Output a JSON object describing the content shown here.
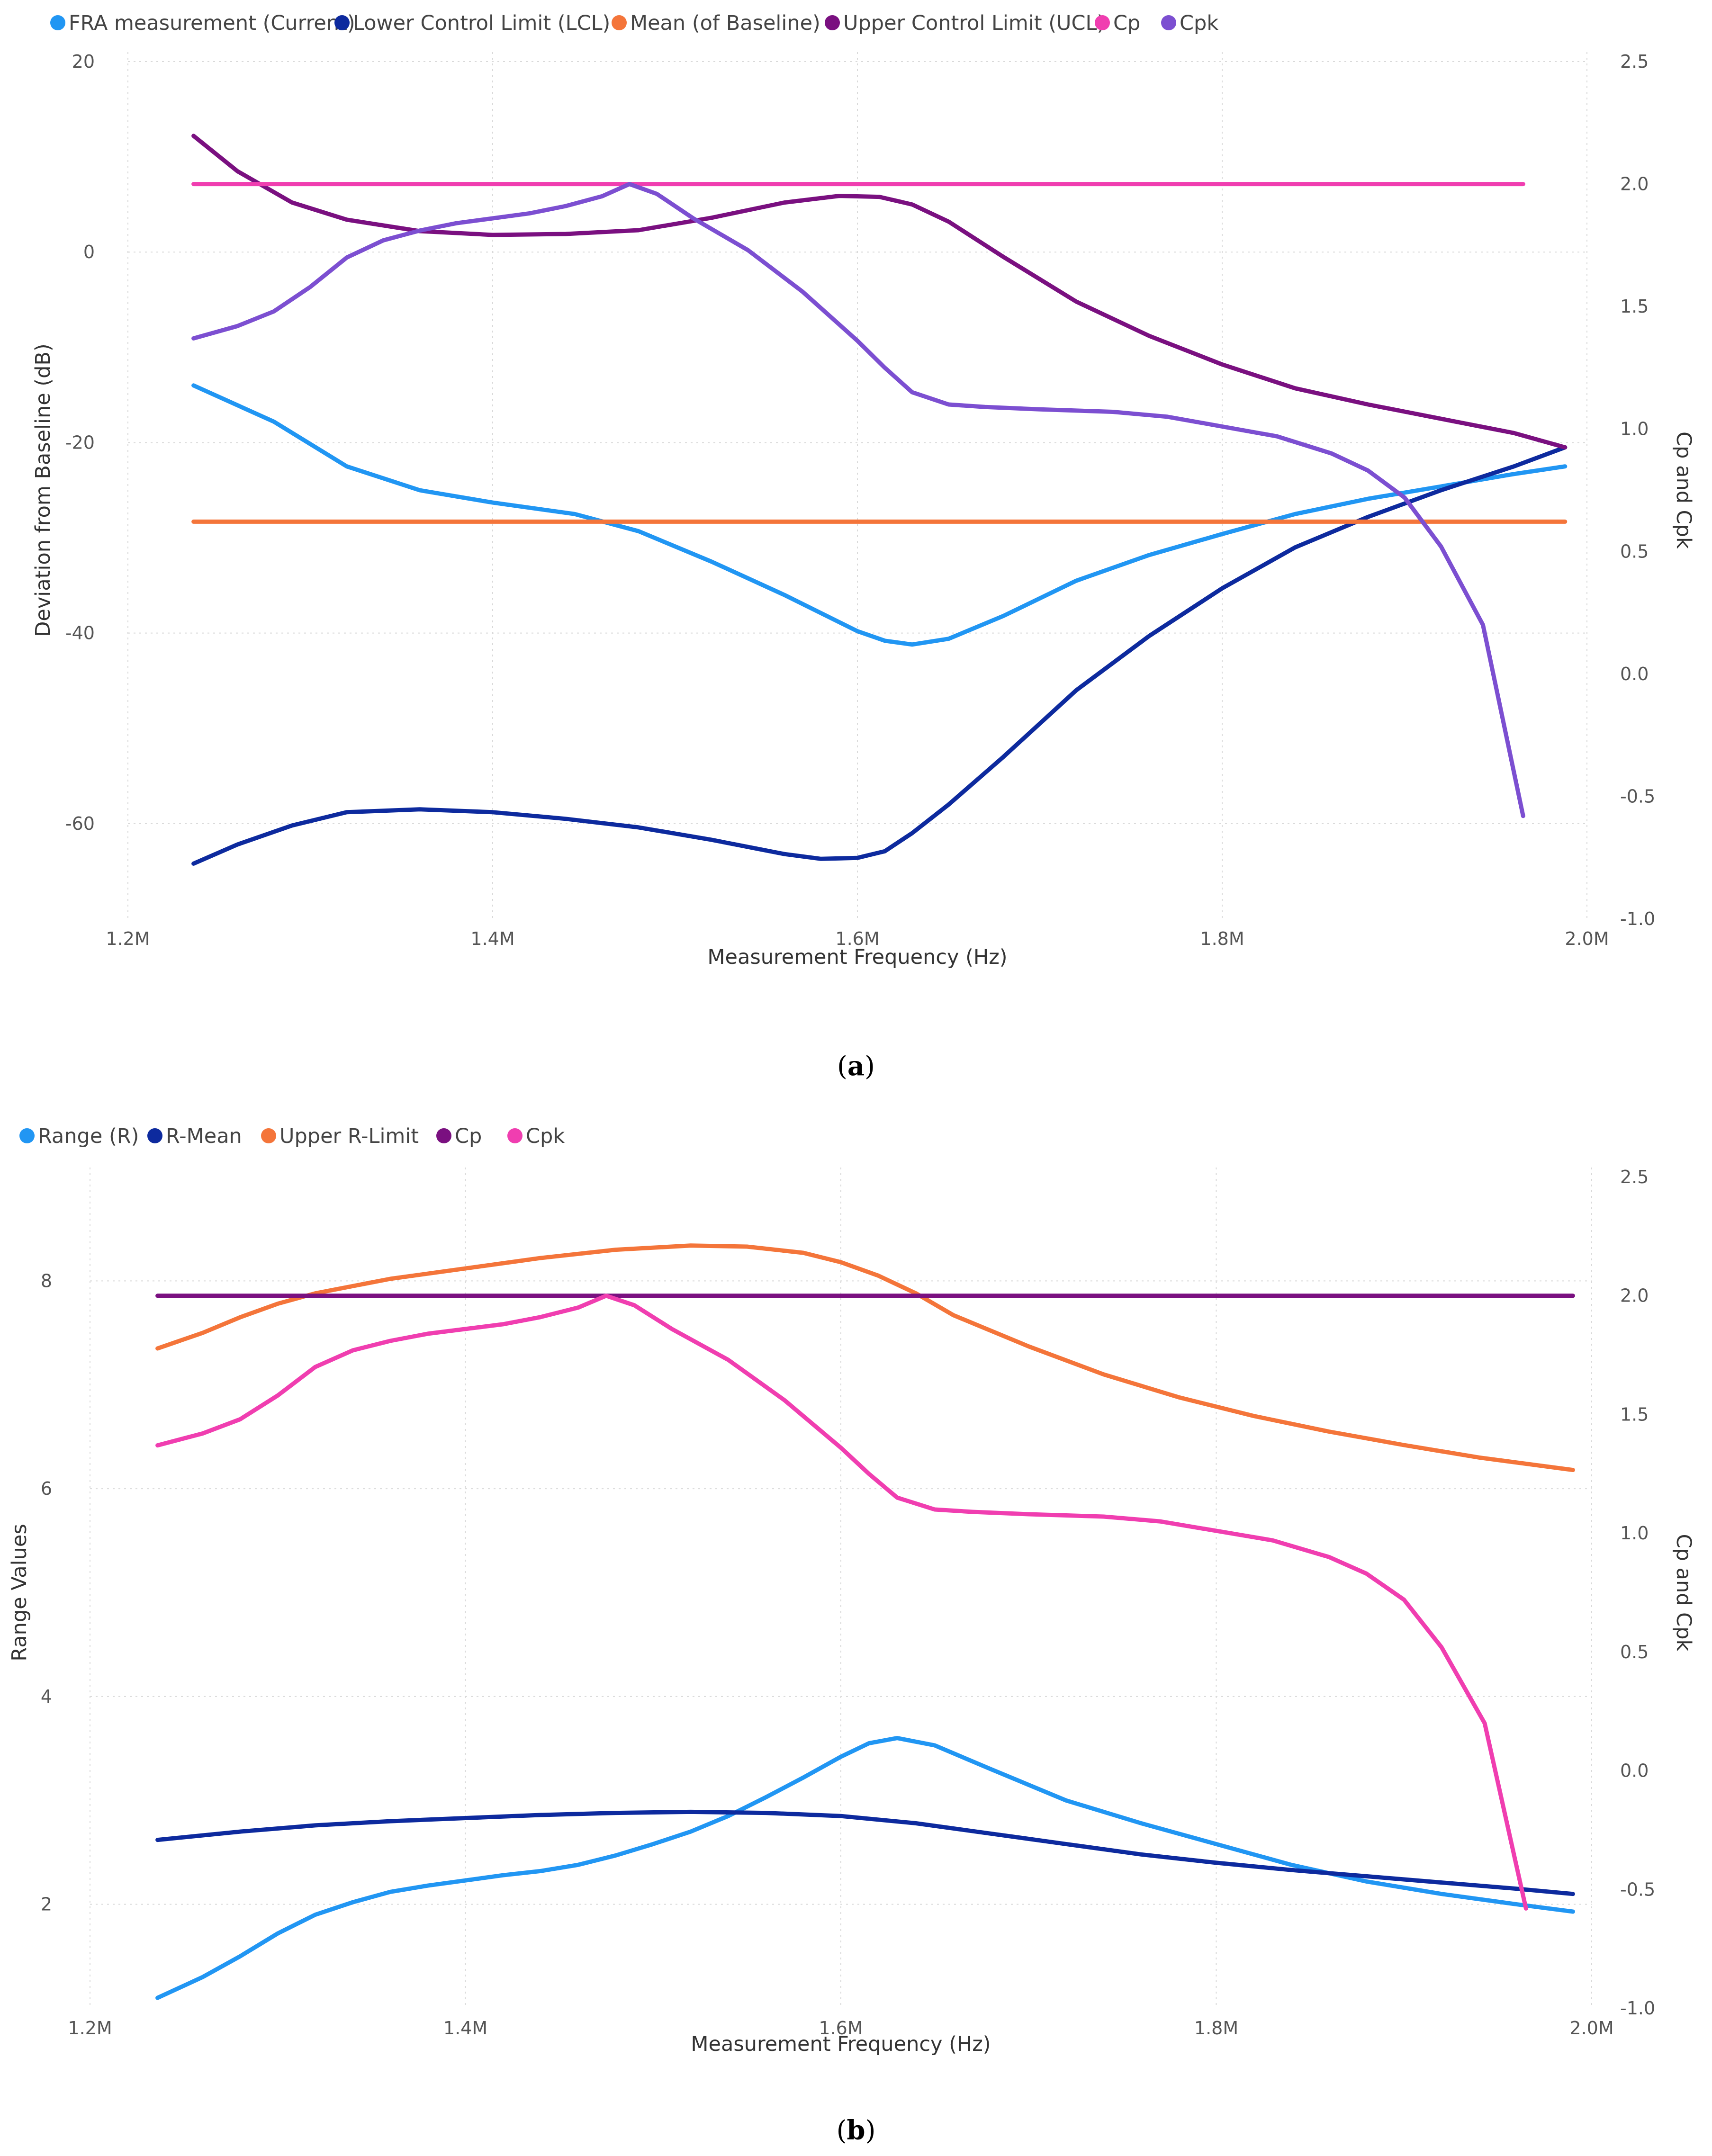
{
  "figure_captions": [
    "(a)",
    "(b)"
  ],
  "chart_data": [
    {
      "type": "line",
      "caption": "(a)",
      "legend_position": "top-left",
      "xlabel": "Measurement Frequency (Hz)",
      "ylabel": "Deviation from Baseline (dB)",
      "y2label": "Cp and Cpk",
      "xlim": [
        1200000,
        2000000
      ],
      "ylim": [
        -70,
        20
      ],
      "y2lim": [
        -1.0,
        2.5
      ],
      "x_ticks": [
        1200000,
        1400000,
        1600000,
        1800000,
        2000000
      ],
      "x_tick_labels": [
        "1.2M",
        "1.4M",
        "1.6M",
        "1.8M",
        "2.0M"
      ],
      "y_ticks": [
        20,
        0,
        -20,
        -40,
        -60
      ],
      "y_tick_labels": [
        "20",
        "0",
        "-20",
        "-40",
        "-60"
      ],
      "y2_ticks": [
        2.5,
        2.0,
        1.5,
        1.0,
        0.5,
        0.0,
        -0.5,
        -1.0
      ],
      "y2_tick_labels": [
        "2.5",
        "2.0",
        "1.5",
        "1.0",
        "0.5",
        "0.0",
        "-0.5",
        "-1.0"
      ],
      "grid": true,
      "series": [
        {
          "name": "FRA measurement (Current)",
          "color": "#2196F3",
          "axis": "left",
          "points": [
            [
              1236000,
              -14
            ],
            [
              1280000,
              -17.8
            ],
            [
              1320000,
              -22.5
            ],
            [
              1360000,
              -25
            ],
            [
              1400000,
              -26.3
            ],
            [
              1445000,
              -27.5
            ],
            [
              1480000,
              -29.3
            ],
            [
              1520000,
              -32.5
            ],
            [
              1560000,
              -36
            ],
            [
              1600000,
              -39.8
            ],
            [
              1615000,
              -40.8
            ],
            [
              1630000,
              -41.2
            ],
            [
              1650000,
              -40.6
            ],
            [
              1680000,
              -38.2
            ],
            [
              1720000,
              -34.5
            ],
            [
              1760000,
              -31.8
            ],
            [
              1800000,
              -29.6
            ],
            [
              1840000,
              -27.5
            ],
            [
              1880000,
              -25.9
            ],
            [
              1920000,
              -24.6
            ],
            [
              1960000,
              -23.3
            ],
            [
              1988000,
              -22.5
            ]
          ]
        },
        {
          "name": "Lower Control Limit (LCL)",
          "color": "#0D2A9E",
          "axis": "left",
          "points": [
            [
              1236000,
              -64.2
            ],
            [
              1260000,
              -62.2
            ],
            [
              1290000,
              -60.2
            ],
            [
              1320000,
              -58.8
            ],
            [
              1360000,
              -58.5
            ],
            [
              1400000,
              -58.8
            ],
            [
              1440000,
              -59.5
            ],
            [
              1480000,
              -60.4
            ],
            [
              1520000,
              -61.7
            ],
            [
              1560000,
              -63.2
            ],
            [
              1580000,
              -63.7
            ],
            [
              1600000,
              -63.6
            ],
            [
              1615000,
              -62.9
            ],
            [
              1630000,
              -61
            ],
            [
              1650000,
              -58
            ],
            [
              1680000,
              -53
            ],
            [
              1720000,
              -46
            ],
            [
              1760000,
              -40.3
            ],
            [
              1800000,
              -35.3
            ],
            [
              1840000,
              -31
            ],
            [
              1880000,
              -27.8
            ],
            [
              1920000,
              -25
            ],
            [
              1960000,
              -22.5
            ],
            [
              1988000,
              -20.5
            ]
          ]
        },
        {
          "name": "Mean (of Baseline)",
          "color": "#F4753A",
          "axis": "left",
          "points": [
            [
              1236000,
              -28.3
            ],
            [
              1988000,
              -28.3
            ]
          ]
        },
        {
          "name": "Upper Control Limit (UCL)",
          "color": "#7A1080",
          "axis": "left",
          "points": [
            [
              1236000,
              12.2
            ],
            [
              1260000,
              8.5
            ],
            [
              1290000,
              5.2
            ],
            [
              1320000,
              3.4
            ],
            [
              1360000,
              2.2
            ],
            [
              1400000,
              1.8
            ],
            [
              1440000,
              1.9
            ],
            [
              1480000,
              2.3
            ],
            [
              1520000,
              3.6
            ],
            [
              1560000,
              5.2
            ],
            [
              1590000,
              5.9
            ],
            [
              1612000,
              5.8
            ],
            [
              1630000,
              5
            ],
            [
              1650000,
              3.2
            ],
            [
              1680000,
              -0.5
            ],
            [
              1720000,
              -5.2
            ],
            [
              1760000,
              -8.8
            ],
            [
              1800000,
              -11.8
            ],
            [
              1840000,
              -14.3
            ],
            [
              1880000,
              -16
            ],
            [
              1920000,
              -17.5
            ],
            [
              1960000,
              -19
            ],
            [
              1988000,
              -20.5
            ]
          ]
        },
        {
          "name": "Cp",
          "color": "#F03EB0",
          "axis": "right",
          "points": [
            [
              1236000,
              2.0
            ],
            [
              1965000,
              2.0
            ]
          ]
        },
        {
          "name": "Cpk",
          "color": "#7C4FD1",
          "axis": "right",
          "points": [
            [
              1236000,
              1.37
            ],
            [
              1260000,
              1.42
            ],
            [
              1280000,
              1.48
            ],
            [
              1300000,
              1.58
            ],
            [
              1320000,
              1.7
            ],
            [
              1340000,
              1.77
            ],
            [
              1360000,
              1.81
            ],
            [
              1380000,
              1.84
            ],
            [
              1400000,
              1.86
            ],
            [
              1420000,
              1.88
            ],
            [
              1440000,
              1.91
            ],
            [
              1460000,
              1.95
            ],
            [
              1475000,
              2.0
            ],
            [
              1490000,
              1.96
            ],
            [
              1510000,
              1.86
            ],
            [
              1540000,
              1.73
            ],
            [
              1570000,
              1.56
            ],
            [
              1600000,
              1.36
            ],
            [
              1615000,
              1.25
            ],
            [
              1630000,
              1.15
            ],
            [
              1650000,
              1.1
            ],
            [
              1670000,
              1.09
            ],
            [
              1700000,
              1.08
            ],
            [
              1740000,
              1.07
            ],
            [
              1770000,
              1.05
            ],
            [
              1800000,
              1.01
            ],
            [
              1830000,
              0.97
            ],
            [
              1860000,
              0.9
            ],
            [
              1880000,
              0.83
            ],
            [
              1900000,
              0.72
            ],
            [
              1920000,
              0.52
            ],
            [
              1943000,
              0.2
            ],
            [
              1965000,
              -0.58
            ]
          ]
        }
      ]
    },
    {
      "type": "line",
      "caption": "(b)",
      "legend_position": "top-left",
      "xlabel": "Measurement Frequency (Hz)",
      "ylabel": "Range Values",
      "y2label": "Cp and Cpk",
      "xlim": [
        1200000,
        2000000
      ],
      "ylim": [
        1,
        9
      ],
      "y2lim": [
        -1.0,
        2.5
      ],
      "x_ticks": [
        1200000,
        1400000,
        1600000,
        1800000,
        2000000
      ],
      "x_tick_labels": [
        "1.2M",
        "1.4M",
        "1.6M",
        "1.8M",
        "2.0M"
      ],
      "y_ticks": [
        8,
        6,
        4,
        2
      ],
      "y_tick_labels": [
        "8",
        "6",
        "4",
        "2"
      ],
      "y2_ticks": [
        2.5,
        2.0,
        1.5,
        1.0,
        0.5,
        0.0,
        -0.5,
        -1.0
      ],
      "y2_tick_labels": [
        "2.5",
        "2.0",
        "1.5",
        "1.0",
        "0.5",
        "0.0",
        "-0.5",
        "-1.0"
      ],
      "grid": true,
      "series": [
        {
          "name": "Range (R)",
          "color": "#2196F3",
          "axis": "left",
          "points": [
            [
              1236000,
              1.1
            ],
            [
              1260000,
              1.3
            ],
            [
              1280000,
              1.5
            ],
            [
              1300000,
              1.72
            ],
            [
              1320000,
              1.9
            ],
            [
              1340000,
              2.02
            ],
            [
              1360000,
              2.12
            ],
            [
              1380000,
              2.18
            ],
            [
              1400000,
              2.23
            ],
            [
              1420000,
              2.28
            ],
            [
              1440000,
              2.32
            ],
            [
              1460000,
              2.38
            ],
            [
              1480000,
              2.47
            ],
            [
              1500000,
              2.58
            ],
            [
              1520000,
              2.7
            ],
            [
              1540000,
              2.85
            ],
            [
              1560000,
              3.03
            ],
            [
              1580000,
              3.22
            ],
            [
              1600000,
              3.42
            ],
            [
              1615000,
              3.55
            ],
            [
              1630000,
              3.6
            ],
            [
              1650000,
              3.53
            ],
            [
              1680000,
              3.3
            ],
            [
              1720000,
              3.0
            ],
            [
              1760000,
              2.78
            ],
            [
              1800000,
              2.58
            ],
            [
              1840000,
              2.38
            ],
            [
              1880000,
              2.22
            ],
            [
              1920000,
              2.1
            ],
            [
              1960000,
              2.0
            ],
            [
              1990000,
              1.93
            ]
          ]
        },
        {
          "name": "R-Mean",
          "color": "#0D2A9E",
          "axis": "left",
          "points": [
            [
              1236000,
              2.62
            ],
            [
              1280000,
              2.7
            ],
            [
              1320000,
              2.76
            ],
            [
              1360000,
              2.8
            ],
            [
              1400000,
              2.83
            ],
            [
              1440000,
              2.86
            ],
            [
              1480000,
              2.88
            ],
            [
              1520000,
              2.89
            ],
            [
              1560000,
              2.88
            ],
            [
              1600000,
              2.85
            ],
            [
              1640000,
              2.78
            ],
            [
              1680000,
              2.68
            ],
            [
              1720000,
              2.58
            ],
            [
              1760000,
              2.48
            ],
            [
              1800000,
              2.4
            ],
            [
              1840000,
              2.33
            ],
            [
              1880000,
              2.27
            ],
            [
              1920000,
              2.21
            ],
            [
              1960000,
              2.15
            ],
            [
              1990000,
              2.1
            ]
          ]
        },
        {
          "name": "Upper R-Limit",
          "color": "#F4753A",
          "axis": "left",
          "points": [
            [
              1236000,
              7.35
            ],
            [
              1260000,
              7.5
            ],
            [
              1280000,
              7.65
            ],
            [
              1300000,
              7.78
            ],
            [
              1320000,
              7.88
            ],
            [
              1360000,
              8.02
            ],
            [
              1400000,
              8.12
            ],
            [
              1440000,
              8.22
            ],
            [
              1480000,
              8.3
            ],
            [
              1520000,
              8.34
            ],
            [
              1550000,
              8.33
            ],
            [
              1580000,
              8.27
            ],
            [
              1600000,
              8.18
            ],
            [
              1620000,
              8.05
            ],
            [
              1640000,
              7.88
            ],
            [
              1660000,
              7.67
            ],
            [
              1700000,
              7.37
            ],
            [
              1740000,
              7.1
            ],
            [
              1780000,
              6.88
            ],
            [
              1820000,
              6.7
            ],
            [
              1860000,
              6.55
            ],
            [
              1900000,
              6.42
            ],
            [
              1940000,
              6.3
            ],
            [
              1990000,
              6.18
            ]
          ]
        },
        {
          "name": "Cp",
          "color": "#7A1080",
          "axis": "right",
          "points": [
            [
              1236000,
              2.0
            ],
            [
              1990000,
              2.0
            ]
          ]
        },
        {
          "name": "Cpk",
          "color": "#F03EB0",
          "axis": "right",
          "points": [
            [
              1236000,
              1.37
            ],
            [
              1260000,
              1.42
            ],
            [
              1280000,
              1.48
            ],
            [
              1300000,
              1.58
            ],
            [
              1320000,
              1.7
            ],
            [
              1340000,
              1.77
            ],
            [
              1360000,
              1.81
            ],
            [
              1380000,
              1.84
            ],
            [
              1400000,
              1.86
            ],
            [
              1420000,
              1.88
            ],
            [
              1440000,
              1.91
            ],
            [
              1460000,
              1.95
            ],
            [
              1475000,
              2.0
            ],
            [
              1490000,
              1.96
            ],
            [
              1510000,
              1.86
            ],
            [
              1540000,
              1.73
            ],
            [
              1570000,
              1.56
            ],
            [
              1600000,
              1.36
            ],
            [
              1615000,
              1.25
            ],
            [
              1630000,
              1.15
            ],
            [
              1650000,
              1.1
            ],
            [
              1670000,
              1.09
            ],
            [
              1700000,
              1.08
            ],
            [
              1740000,
              1.07
            ],
            [
              1770000,
              1.05
            ],
            [
              1800000,
              1.01
            ],
            [
              1830000,
              0.97
            ],
            [
              1860000,
              0.9
            ],
            [
              1880000,
              0.83
            ],
            [
              1900000,
              0.72
            ],
            [
              1920000,
              0.52
            ],
            [
              1943000,
              0.2
            ],
            [
              1965000,
              -0.58
            ]
          ]
        }
      ]
    }
  ]
}
